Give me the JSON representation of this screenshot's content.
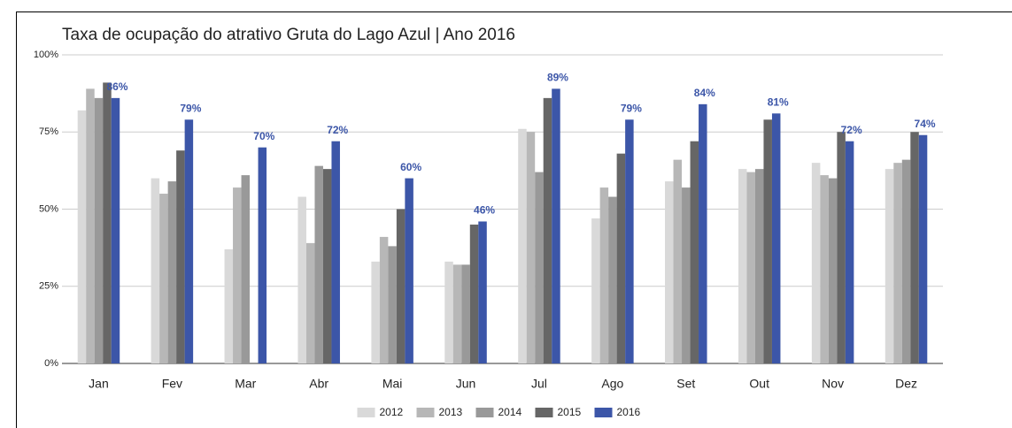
{
  "chart_data": {
    "type": "bar",
    "title": "Taxa de ocupação do atrativo Gruta do Lago Azul | Ano 2016",
    "categories": [
      "Jan",
      "Fev",
      "Mar",
      "Abr",
      "Mai",
      "Jun",
      "Jul",
      "Ago",
      "Set",
      "Out",
      "Nov",
      "Dez"
    ],
    "series": [
      {
        "name": "2012",
        "color": "#d9d9d9",
        "values": [
          82,
          60,
          37,
          54,
          33,
          33,
          76,
          47,
          59,
          63,
          65,
          63
        ]
      },
      {
        "name": "2013",
        "color": "#b7b7b7",
        "values": [
          89,
          55,
          57,
          39,
          41,
          32,
          75,
          57,
          66,
          62,
          61,
          65
        ]
      },
      {
        "name": "2014",
        "color": "#999999",
        "values": [
          86,
          59,
          61,
          64,
          38,
          32,
          62,
          54,
          57,
          63,
          60,
          66
        ]
      },
      {
        "name": "2015",
        "color": "#666666",
        "values": [
          91,
          69,
          null,
          63,
          50,
          45,
          86,
          68,
          72,
          79,
          75,
          75
        ]
      },
      {
        "name": "2016",
        "color": "#3c56a8",
        "values": [
          86,
          79,
          70,
          72,
          60,
          46,
          89,
          79,
          84,
          81,
          72,
          74
        ],
        "value_labels": [
          "86%",
          "79%",
          "70%",
          "72%",
          "60%",
          "46%",
          "89%",
          "79%",
          "84%",
          "81%",
          "72%",
          "74%"
        ]
      }
    ],
    "ylim": [
      0,
      100
    ],
    "yticks": [
      {
        "value": 0,
        "label": "0%"
      },
      {
        "value": 25,
        "label": "25%"
      },
      {
        "value": 50,
        "label": "50%"
      },
      {
        "value": 75,
        "label": "75%"
      },
      {
        "value": 100,
        "label": "100%"
      }
    ],
    "grid": true,
    "legend": "bottom"
  }
}
